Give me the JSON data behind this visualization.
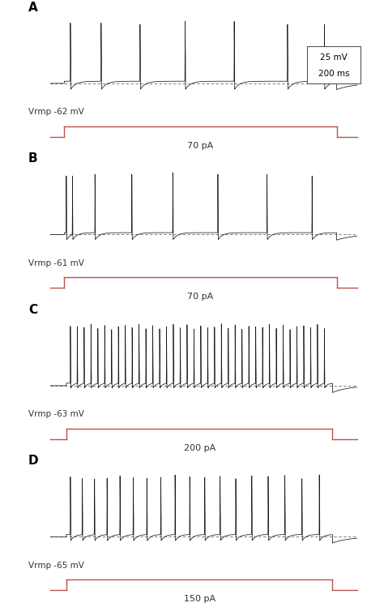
{
  "panels": [
    "A",
    "B",
    "C",
    "D"
  ],
  "vrmp_labels": [
    "Vrmp -62 mV",
    "Vrmp -61 mV",
    "Vrmp -63 mV",
    "Vrmp -65 mV"
  ],
  "current_labels": [
    "70 pA",
    "70 pA",
    "200 pA",
    "150 pA"
  ],
  "bg_color": "#ffffff",
  "trace_color": "#1a1a1a",
  "current_color": "#c0504d",
  "dashed_color": "#666666",
  "panel_label_fontsize": 11,
  "vrmp_fontsize": 7.5,
  "current_fontsize": 8,
  "scalebox_fontsize": 7.5
}
